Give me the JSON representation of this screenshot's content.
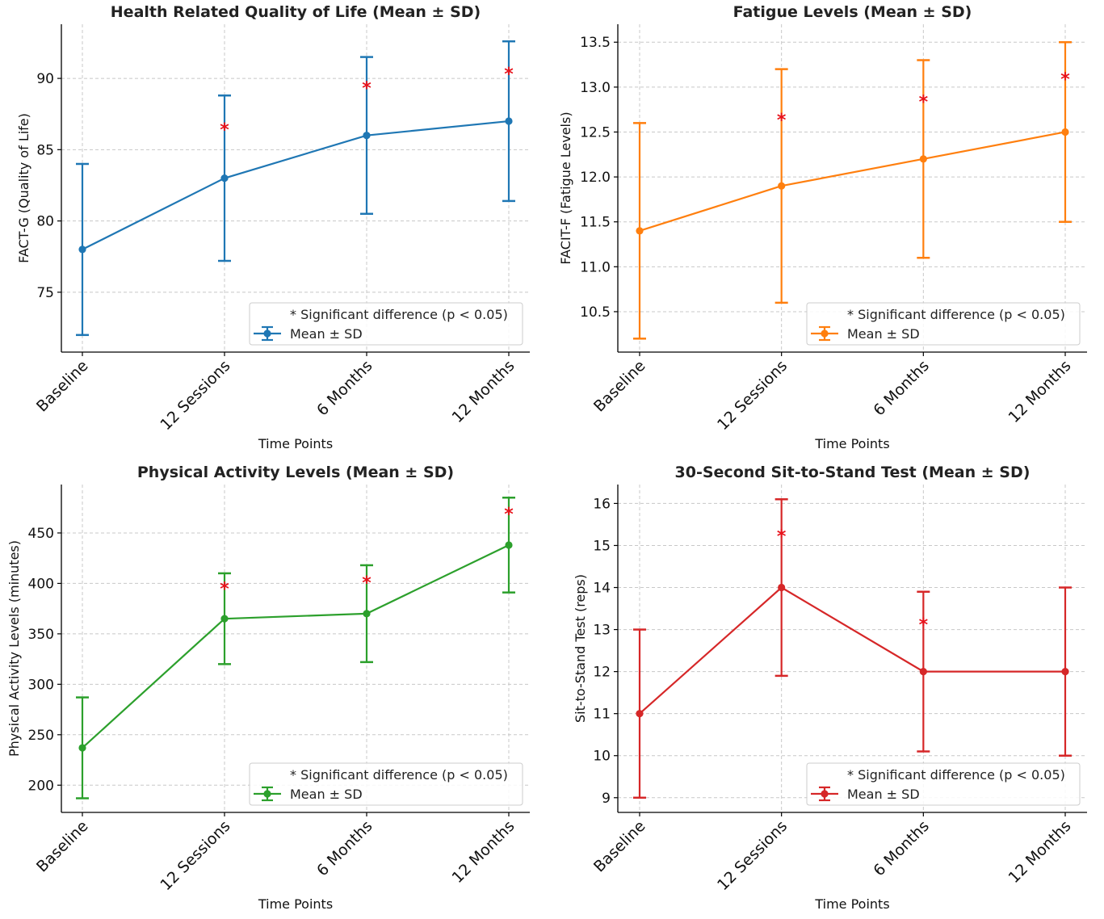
{
  "chart_data": [
    {
      "type": "line",
      "title": "Health Related Quality of Life (Mean ± SD)",
      "xlabel": "Time Points",
      "ylabel": "FACT-G (Quality of Life)",
      "categories": [
        "Baseline",
        "12 Sessions",
        "6 Months",
        "12 Months"
      ],
      "series": [
        {
          "values": [
            78,
            83,
            86,
            87
          ],
          "sd": [
            6,
            5.8,
            5.5,
            5.6
          ]
        }
      ],
      "significance": [
        null,
        86.5,
        89.4,
        90.4
      ],
      "significance_marker": "*",
      "ylim": [
        70.8,
        93.8
      ],
      "yticks": [
        75,
        80,
        85,
        90
      ],
      "ytick_labels": [
        "75",
        "80",
        "85",
        "90"
      ],
      "color": "#1f77b4",
      "legend": [
        "* Significant difference (p < 0.05)",
        "Mean ± SD"
      ],
      "legend_position": "lower-right",
      "grid": true
    },
    {
      "type": "line",
      "title": "Fatigue Levels (Mean ± SD)",
      "xlabel": "Time Points",
      "ylabel": "FACIT-F (Fatigue Levels)",
      "categories": [
        "Baseline",
        "12 Sessions",
        "6 Months",
        "12 Months"
      ],
      "series": [
        {
          "values": [
            11.4,
            11.9,
            12.2,
            12.5
          ],
          "sd": [
            1.2,
            1.3,
            1.1,
            1.0
          ]
        }
      ],
      "significance": [
        null,
        12.65,
        12.85,
        13.1
      ],
      "significance_marker": "*",
      "ylim": [
        10.05,
        13.7
      ],
      "yticks": [
        10.5,
        11.0,
        11.5,
        12.0,
        12.5,
        13.0,
        13.5
      ],
      "ytick_labels": [
        "10.5",
        "11.0",
        "11.5",
        "12.0",
        "12.5",
        "13.0",
        "13.5"
      ],
      "color": "#ff7f0e",
      "legend": [
        "* Significant difference (p < 0.05)",
        "Mean ± SD"
      ],
      "legend_position": "lower-right",
      "grid": true
    },
    {
      "type": "line",
      "title": "Physical Activity Levels (Mean ± SD)",
      "xlabel": "Time Points",
      "ylabel": "Physical Activity Levels (minutes)",
      "categories": [
        "Baseline",
        "12 Sessions",
        "6 Months",
        "12 Months"
      ],
      "series": [
        {
          "values": [
            237,
            365,
            370,
            438
          ],
          "sd": [
            50,
            45,
            48,
            47
          ]
        }
      ],
      "significance": [
        null,
        396,
        402,
        470
      ],
      "significance_marker": "*",
      "ylim": [
        173,
        498
      ],
      "yticks": [
        200,
        250,
        300,
        350,
        400,
        450
      ],
      "ytick_labels": [
        "200",
        "250",
        "300",
        "350",
        "400",
        "450"
      ],
      "color": "#2ca02c",
      "legend": [
        "* Significant difference (p < 0.05)",
        "Mean ± SD"
      ],
      "legend_position": "lower-right",
      "grid": true
    },
    {
      "type": "line",
      "title": "30-Second Sit-to-Stand Test (Mean ± SD)",
      "xlabel": "Time Points",
      "ylabel": "Sit-to-Stand Test (reps)",
      "categories": [
        "Baseline",
        "12 Sessions",
        "6 Months",
        "12 Months"
      ],
      "series": [
        {
          "values": [
            11,
            14,
            12,
            12
          ],
          "sd": [
            2,
            2.1,
            1.9,
            2
          ]
        }
      ],
      "significance": [
        null,
        15.25,
        13.15,
        null
      ],
      "significance_marker": "*",
      "ylim": [
        8.65,
        16.45
      ],
      "yticks": [
        9,
        10,
        11,
        12,
        13,
        14,
        15,
        16
      ],
      "ytick_labels": [
        "9",
        "10",
        "11",
        "12",
        "13",
        "14",
        "15",
        "16"
      ],
      "color": "#d62728",
      "legend": [
        "* Significant difference (p < 0.05)",
        "Mean ± SD"
      ],
      "legend_position": "lower-right",
      "grid": true
    }
  ]
}
